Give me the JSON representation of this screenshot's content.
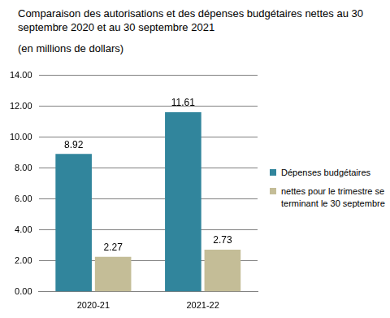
{
  "chart_data": {
    "type": "bar",
    "title": "Comparaison des autorisations et des dépenses budgétaires nettes au 30 septembre 2020 et au 30 septembre 2021",
    "subtitle": "(en millions de dollars)",
    "categories": [
      "2020-21",
      "2021-22"
    ],
    "series": [
      {
        "name": "Dépenses budgétaires",
        "color": "#31859c",
        "values": [
          8.92,
          11.61
        ]
      },
      {
        "name": "nettes pour le trimestre se terminant le 30 septembre",
        "color": "#c4bd97",
        "values": [
          2.27,
          2.73
        ]
      }
    ],
    "ylim": [
      0,
      14
    ],
    "yticks": [
      {
        "value": 0,
        "label": "0.00"
      },
      {
        "value": 2,
        "label": "2.00"
      },
      {
        "value": 4,
        "label": "4.00"
      },
      {
        "value": 6,
        "label": "6.00"
      },
      {
        "value": 8,
        "label": "8.00"
      },
      {
        "value": 10,
        "label": "10.00"
      },
      {
        "value": 12,
        "label": "12.00"
      },
      {
        "value": 14,
        "label": "14.00"
      }
    ],
    "grid": true,
    "legend": "right",
    "data_labels": true
  }
}
